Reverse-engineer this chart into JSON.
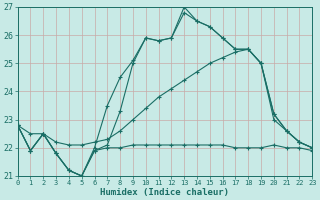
{
  "xlabel": "Humidex (Indice chaleur)",
  "xlim": [
    0,
    23
  ],
  "ylim": [
    21,
    27
  ],
  "yticks": [
    21,
    22,
    23,
    24,
    25,
    26,
    27
  ],
  "xticks": [
    0,
    1,
    2,
    3,
    4,
    5,
    6,
    7,
    8,
    9,
    10,
    11,
    12,
    13,
    14,
    15,
    16,
    17,
    18,
    19,
    20,
    21,
    22,
    23
  ],
  "bg_color": "#c8eae6",
  "line_color": "#1a6e65",
  "grid_color": "#dde8e6",
  "series": [
    {
      "x": [
        0,
        1,
        2,
        3,
        4,
        5,
        6,
        7,
        8,
        9,
        10,
        11,
        12,
        13,
        14,
        15,
        16,
        17,
        18,
        19,
        20,
        21,
        22,
        23
      ],
      "y": [
        22.8,
        21.9,
        22.5,
        21.8,
        21.2,
        21.0,
        22.0,
        23.5,
        24.5,
        25.1,
        25.9,
        25.8,
        25.9,
        27.0,
        26.5,
        26.3,
        25.9,
        25.5,
        25.5,
        25.0,
        23.2,
        22.6,
        22.2,
        22.0
      ]
    },
    {
      "x": [
        0,
        1,
        2,
        3,
        4,
        5,
        6,
        7,
        8,
        9,
        10,
        11,
        12,
        13,
        14,
        15,
        16,
        17,
        18,
        19,
        20,
        21,
        22,
        23
      ],
      "y": [
        22.8,
        21.9,
        22.5,
        21.8,
        21.2,
        21.0,
        21.9,
        22.1,
        23.3,
        25.0,
        25.9,
        25.8,
        25.9,
        26.8,
        26.5,
        26.3,
        25.9,
        25.5,
        25.5,
        25.0,
        23.0,
        22.6,
        22.2,
        22.0
      ]
    },
    {
      "x": [
        0,
        1,
        2,
        3,
        4,
        5,
        6,
        7,
        8,
        9,
        10,
        11,
        12,
        13,
        14,
        15,
        16,
        17,
        18,
        19,
        20,
        21,
        22,
        23
      ],
      "y": [
        22.8,
        22.5,
        22.5,
        22.2,
        22.1,
        22.1,
        22.2,
        22.3,
        22.6,
        23.0,
        23.4,
        23.8,
        24.1,
        24.4,
        24.7,
        25.0,
        25.2,
        25.4,
        25.5,
        25.0,
        23.2,
        22.6,
        22.2,
        22.0
      ]
    },
    {
      "x": [
        0,
        1,
        2,
        3,
        4,
        5,
        6,
        7,
        8,
        9,
        10,
        11,
        12,
        13,
        14,
        15,
        16,
        17,
        18,
        19,
        20,
        21,
        22,
        23
      ],
      "y": [
        22.8,
        21.9,
        22.5,
        21.8,
        21.2,
        21.0,
        21.9,
        22.0,
        22.0,
        22.1,
        22.1,
        22.1,
        22.1,
        22.1,
        22.1,
        22.1,
        22.1,
        22.0,
        22.0,
        22.0,
        22.1,
        22.0,
        22.0,
        21.9
      ]
    }
  ]
}
